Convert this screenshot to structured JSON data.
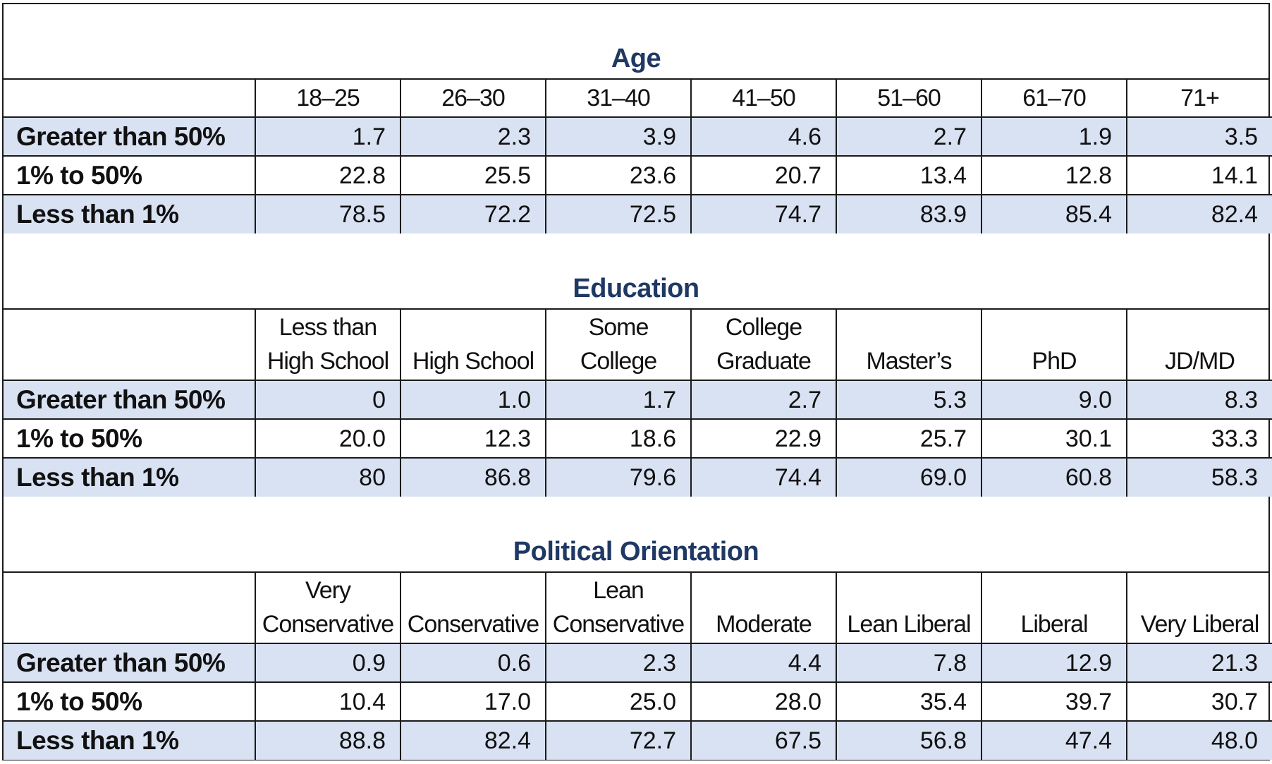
{
  "chart_data": [
    {
      "type": "table",
      "title": "Age",
      "columns": [
        "18–25",
        "26–30",
        "31–40",
        "41–50",
        "51–60",
        "61–70",
        "71+"
      ],
      "rows": [
        {
          "label": "Greater than 50%",
          "values": [
            "1.7",
            "2.3",
            "3.9",
            "4.6",
            "2.7",
            "1.9",
            "3.5"
          ]
        },
        {
          "label": "1% to 50%",
          "values": [
            "22.8",
            "25.5",
            "23.6",
            "20.7",
            "13.4",
            "12.8",
            "14.1"
          ]
        },
        {
          "label": "Less than 1%",
          "values": [
            "78.5",
            "72.2",
            "72.5",
            "74.7",
            "83.9",
            "85.4",
            "82.4"
          ]
        }
      ]
    },
    {
      "type": "table",
      "title": "Education",
      "columns": [
        "Less than\nHigh School",
        "High School",
        "Some\nCollege",
        "College\nGraduate",
        "Master’s",
        "PhD",
        "JD/MD"
      ],
      "rows": [
        {
          "label": "Greater than 50%",
          "values": [
            "0",
            "1.0",
            "1.7",
            "2.7",
            "5.3",
            "9.0",
            "8.3"
          ]
        },
        {
          "label": "1% to 50%",
          "values": [
            "20.0",
            "12.3",
            "18.6",
            "22.9",
            "25.7",
            "30.1",
            "33.3"
          ]
        },
        {
          "label": "Less than 1%",
          "values": [
            "80",
            "86.8",
            "79.6",
            "74.4",
            "69.0",
            "60.8",
            "58.3"
          ]
        }
      ]
    },
    {
      "type": "table",
      "title": "Political Orientation",
      "columns": [
        "Very\nConservative",
        "Conservative",
        "Lean\nConservative",
        "Moderate",
        "Lean Liberal",
        "Liberal",
        "Very Liberal"
      ],
      "rows": [
        {
          "label": "Greater than 50%",
          "values": [
            "0.9",
            "0.6",
            "2.3",
            "4.4",
            "7.8",
            "12.9",
            "21.3"
          ]
        },
        {
          "label": "1% to 50%",
          "values": [
            "10.4",
            "17.0",
            "25.0",
            "28.0",
            "35.4",
            "39.7",
            "30.7"
          ]
        },
        {
          "label": "Less than 1%",
          "values": [
            "88.8",
            "82.4",
            "72.7",
            "67.5",
            "56.8",
            "47.4",
            "48.0"
          ]
        }
      ]
    }
  ],
  "colors": {
    "title_text": "#1f3864",
    "row_shade": "#d9e2f3",
    "border": "#1a1a1a"
  }
}
